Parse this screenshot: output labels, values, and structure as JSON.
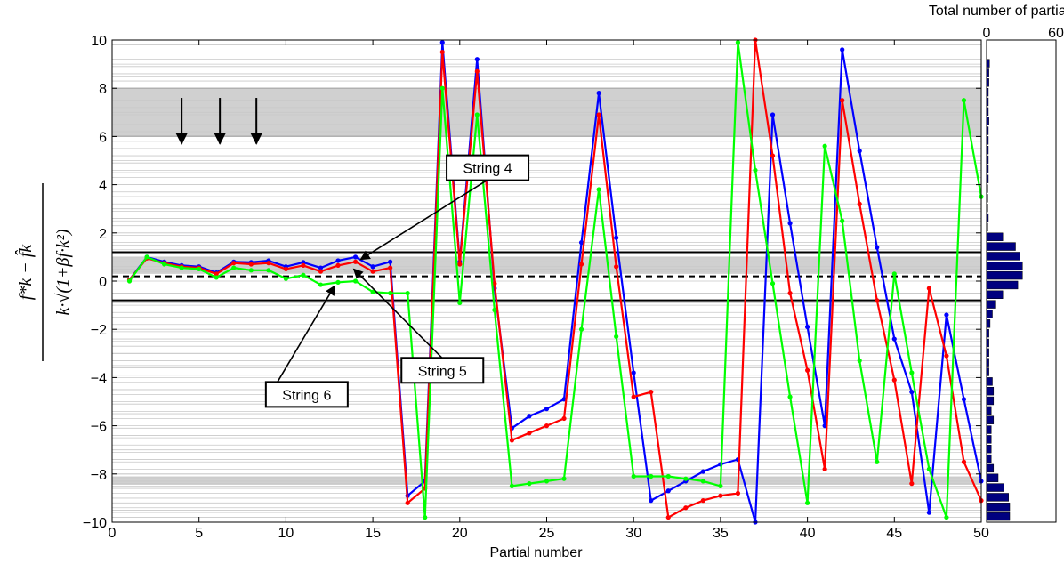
{
  "chart_data": [
    {
      "type": "line",
      "xlabel": "Partial number",
      "ylabel": {
        "numerator": "f*k − f̂k",
        "denominator": "k·√(1+βf·k²)"
      },
      "xlim": [
        0,
        50
      ],
      "ylim": [
        -10,
        10
      ],
      "xticks": [
        0,
        5,
        10,
        15,
        20,
        25,
        30,
        35,
        40,
        45,
        50
      ],
      "yticks": [
        -10,
        -8,
        -6,
        -4,
        -2,
        0,
        2,
        4,
        6,
        8,
        10
      ],
      "grid": "horizontal lines at each partial's expected deviation",
      "shaded_bands": [
        {
          "y_from": 6,
          "y_to": 8,
          "color": "#d0d0d0"
        },
        {
          "y_from": 0.3,
          "y_to": 1.0,
          "color": "#d0d0d0"
        },
        {
          "y_from": -8.45,
          "y_to": -8.1,
          "color": "#d0d0d0"
        }
      ],
      "reference_lines": [
        {
          "y": 1.2,
          "style": "solid"
        },
        {
          "y": 0.2,
          "style": "dashed"
        },
        {
          "y": -0.8,
          "style": "solid"
        }
      ],
      "arrows_down": [
        {
          "x": 4,
          "y_from": 7.6,
          "y_to": 5.7
        },
        {
          "x": 6.2,
          "y_from": 7.6,
          "y_to": 5.7
        },
        {
          "x": 8.3,
          "y_from": 7.6,
          "y_to": 5.7
        }
      ],
      "series": [
        {
          "color": "#0000ff",
          "x": [
            1,
            2,
            3,
            4,
            5,
            6,
            7,
            8,
            9,
            10,
            11,
            12,
            13,
            14,
            15,
            16,
            17,
            18,
            19,
            20,
            21,
            22,
            23,
            24,
            25,
            26,
            27,
            28,
            29,
            30,
            31,
            32,
            33,
            34,
            35,
            36,
            37,
            38,
            39,
            40,
            41,
            42,
            43,
            44,
            45,
            46,
            47,
            48,
            49,
            50
          ],
          "y": [
            0.05,
            1.0,
            0.8,
            0.65,
            0.6,
            0.35,
            0.8,
            0.78,
            0.85,
            0.6,
            0.78,
            0.55,
            0.85,
            1.0,
            0.6,
            0.8,
            -8.9,
            -8.3,
            9.9,
            0.8,
            9.2,
            -0.3,
            -6.1,
            -5.6,
            -5.3,
            -4.9,
            1.6,
            7.8,
            1.8,
            -3.8,
            -9.1,
            -8.7,
            -8.3,
            -7.9,
            -7.6,
            -7.4,
            -10.0,
            6.9,
            2.4,
            -1.9,
            -6.0,
            9.6,
            5.4,
            1.4,
            -2.4,
            -4.6,
            -9.6,
            -1.4,
            -4.9,
            -8.3
          ]
        },
        {
          "color": "#ff0000",
          "x": [
            1,
            2,
            3,
            4,
            5,
            6,
            7,
            8,
            9,
            10,
            11,
            12,
            13,
            14,
            15,
            16,
            17,
            18,
            19,
            20,
            21,
            22,
            23,
            24,
            25,
            26,
            27,
            28,
            29,
            30,
            31,
            32,
            33,
            34,
            35,
            36,
            37,
            38,
            39,
            40,
            41,
            42,
            43,
            44,
            45,
            46,
            47,
            48,
            49,
            50
          ],
          "y": [
            0.05,
            0.95,
            0.75,
            0.6,
            0.55,
            0.3,
            0.75,
            0.7,
            0.75,
            0.5,
            0.65,
            0.4,
            0.65,
            0.8,
            0.4,
            0.55,
            -9.2,
            -8.6,
            9.5,
            0.7,
            8.7,
            -0.1,
            -6.6,
            -6.3,
            -6.0,
            -5.7,
            0.7,
            6.9,
            0.6,
            -4.8,
            -4.6,
            -9.8,
            -9.4,
            -9.1,
            -8.9,
            -8.8,
            10.0,
            5.2,
            -0.5,
            -3.7,
            -7.8,
            7.5,
            3.2,
            -0.8,
            -4.1,
            -8.4,
            -0.3,
            -3.1,
            -7.5,
            -9.1
          ]
        },
        {
          "color": "#00ff00",
          "x": [
            1,
            2,
            3,
            4,
            5,
            6,
            7,
            8,
            9,
            10,
            11,
            12,
            13,
            14,
            15,
            16,
            17,
            18,
            19,
            20,
            21,
            22,
            23,
            24,
            25,
            26,
            27,
            28,
            29,
            30,
            31,
            32,
            33,
            34,
            35,
            36,
            37,
            38,
            39,
            40,
            41,
            42,
            43,
            44,
            45,
            46,
            47,
            48,
            49,
            50
          ],
          "y": [
            0.0,
            1.0,
            0.7,
            0.55,
            0.5,
            0.15,
            0.55,
            0.45,
            0.45,
            0.1,
            0.25,
            -0.15,
            -0.05,
            0.0,
            -0.45,
            -0.5,
            -0.5,
            -9.8,
            8.0,
            -0.9,
            6.9,
            -1.2,
            -8.5,
            -8.4,
            -8.3,
            -8.2,
            -2.0,
            3.8,
            -2.3,
            -8.1,
            -8.1,
            -8.1,
            -8.2,
            -8.3,
            -8.5,
            9.9,
            4.6,
            -0.1,
            -4.8,
            -9.2,
            5.6,
            2.5,
            -3.3,
            -7.5,
            0.3,
            -3.8,
            -7.8,
            -9.8,
            7.5,
            3.5
          ]
        }
      ],
      "annotations": [
        {
          "text": "String 4",
          "box_x": 21.6,
          "box_y": 4.7,
          "arrow_from_x": 21.6,
          "arrow_from_y": 4.2,
          "arrow_to_x": 14.3,
          "arrow_to_y": 0.9
        },
        {
          "text": "String 5",
          "box_x": 19.0,
          "box_y": -3.7,
          "arrow_from_x": 19.0,
          "arrow_from_y": -3.2,
          "arrow_to_x": 13.9,
          "arrow_to_y": 0.5
        },
        {
          "text": "String 6",
          "box_x": 11.2,
          "box_y": -4.7,
          "arrow_from_x": 9.5,
          "arrow_from_y": -4.2,
          "arrow_to_x": 12.8,
          "arrow_to_y": -0.2
        }
      ]
    },
    {
      "type": "bar",
      "orientation": "horizontal",
      "title": "Total number of partials",
      "xlim": [
        0,
        60
      ],
      "xticks": [
        0,
        60
      ],
      "ylim": [
        -10,
        10
      ],
      "bin_width": 0.4,
      "bins": [
        {
          "y": 9.0,
          "value": 2.5
        },
        {
          "y": 8.6,
          "value": 2.0
        },
        {
          "y": 8.2,
          "value": 2.0
        },
        {
          "y": 7.8,
          "value": 1.5
        },
        {
          "y": 7.4,
          "value": 1.5
        },
        {
          "y": 7.0,
          "value": 1.5
        },
        {
          "y": 6.6,
          "value": 2.0
        },
        {
          "y": 6.2,
          "value": 1.5
        },
        {
          "y": 5.8,
          "value": 1.5
        },
        {
          "y": 5.4,
          "value": 1.5
        },
        {
          "y": 5.0,
          "value": 1.5
        },
        {
          "y": 4.6,
          "value": 1.5
        },
        {
          "y": 4.2,
          "value": 1.5
        },
        {
          "y": 3.8,
          "value": 1.0
        },
        {
          "y": 3.4,
          "value": 1.0
        },
        {
          "y": 3.0,
          "value": 1.0
        },
        {
          "y": 2.6,
          "value": 1.5
        },
        {
          "y": 2.2,
          "value": 1.0
        },
        {
          "y": 1.8,
          "value": 14
        },
        {
          "y": 1.4,
          "value": 25
        },
        {
          "y": 1.0,
          "value": 29
        },
        {
          "y": 0.6,
          "value": 31
        },
        {
          "y": 0.2,
          "value": 31
        },
        {
          "y": -0.2,
          "value": 27
        },
        {
          "y": -0.6,
          "value": 14
        },
        {
          "y": -1.0,
          "value": 8
        },
        {
          "y": -1.4,
          "value": 5
        },
        {
          "y": -1.8,
          "value": 3
        },
        {
          "y": -2.2,
          "value": 2
        },
        {
          "y": -2.6,
          "value": 2
        },
        {
          "y": -3.0,
          "value": 2
        },
        {
          "y": -3.4,
          "value": 2
        },
        {
          "y": -3.8,
          "value": 2
        },
        {
          "y": -4.2,
          "value": 5
        },
        {
          "y": -4.6,
          "value": 6
        },
        {
          "y": -5.0,
          "value": 6
        },
        {
          "y": -5.4,
          "value": 4
        },
        {
          "y": -5.8,
          "value": 6
        },
        {
          "y": -6.2,
          "value": 4
        },
        {
          "y": -6.6,
          "value": 4
        },
        {
          "y": -7.0,
          "value": 4
        },
        {
          "y": -7.4,
          "value": 4
        },
        {
          "y": -7.8,
          "value": 6
        },
        {
          "y": -8.2,
          "value": 10
        },
        {
          "y": -8.6,
          "value": 15
        },
        {
          "y": -9.0,
          "value": 19
        },
        {
          "y": -9.4,
          "value": 20
        },
        {
          "y": -9.8,
          "value": 20
        }
      ]
    }
  ]
}
